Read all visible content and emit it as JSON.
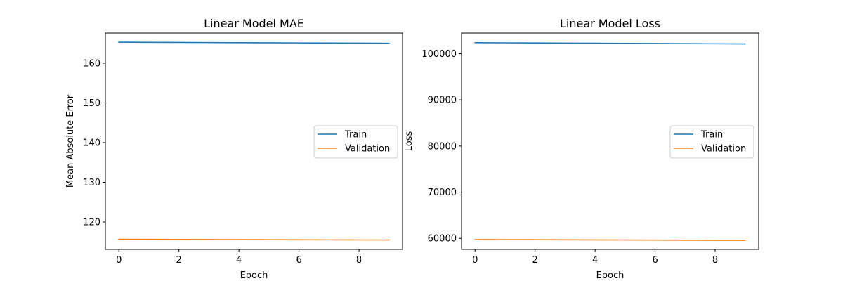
{
  "chart_data": [
    {
      "type": "line",
      "title": "Linear Model MAE",
      "xlabel": "Epoch",
      "ylabel": "Mean Absolute Error",
      "xlim": [
        -0.45,
        9.45
      ],
      "ylim": [
        113.1,
        167.6
      ],
      "xticks": [
        0,
        2,
        4,
        6,
        8
      ],
      "yticks": [
        120,
        130,
        140,
        150,
        160
      ],
      "x": [
        0,
        1,
        2,
        3,
        4,
        5,
        6,
        7,
        8,
        9
      ],
      "series": [
        {
          "name": "Train",
          "color": "#1f77b4",
          "values": [
            165.28,
            165.25,
            165.22,
            165.19,
            165.16,
            165.13,
            165.1,
            165.07,
            165.04,
            165.01
          ]
        },
        {
          "name": "Validation",
          "color": "#ff7f0e",
          "values": [
            115.65,
            115.63,
            115.61,
            115.59,
            115.57,
            115.55,
            115.53,
            115.51,
            115.49,
            115.47
          ]
        }
      ],
      "legend": "center-right",
      "grid": false
    },
    {
      "type": "line",
      "title": "Linear Model Loss",
      "xlabel": "Epoch",
      "ylabel": "Loss",
      "xlim": [
        -0.45,
        9.45
      ],
      "ylim": [
        57600,
        104500
      ],
      "xticks": [
        0,
        2,
        4,
        6,
        8
      ],
      "yticks": [
        60000,
        70000,
        80000,
        90000,
        100000
      ],
      "x": [
        0,
        1,
        2,
        3,
        4,
        5,
        6,
        7,
        8,
        9
      ],
      "series": [
        {
          "name": "Train",
          "color": "#1f77b4",
          "values": [
            102400,
            102370,
            102340,
            102310,
            102280,
            102250,
            102220,
            102190,
            102160,
            102130
          ]
        },
        {
          "name": "Validation",
          "color": "#ff7f0e",
          "values": [
            59750,
            59730,
            59710,
            59690,
            59670,
            59650,
            59630,
            59610,
            59590,
            59570
          ]
        }
      ],
      "legend": "center-right",
      "grid": false
    }
  ]
}
